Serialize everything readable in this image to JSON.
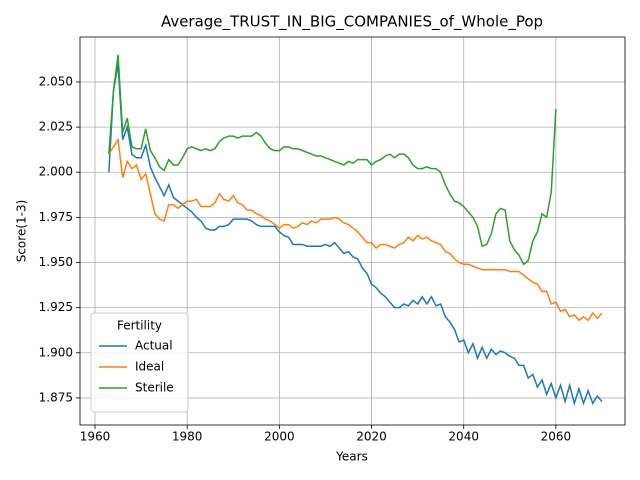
{
  "chart_data": {
    "type": "line",
    "title": "Average_TRUST_IN_BIG_COMPANIES_of_Whole_Pop",
    "x_label": "Years",
    "y_label": "Score(1-3)",
    "legend_title": "Fertility",
    "legend": "lower left",
    "grid": true,
    "xlim": [
      1956.74,
      2075.0
    ],
    "ylim": [
      1.86,
      2.0749
    ],
    "xticks": [
      1960,
      1980,
      2000,
      2020,
      2040,
      2060
    ],
    "yticks": [
      1.875,
      {
        "value": 1.9,
        "label": "1.900"
      },
      1.925,
      {
        "value": 1.95,
        "label": "1.950"
      },
      1.975,
      {
        "value": 2.0,
        "label": "2.000"
      },
      2.025,
      {
        "value": 2.05,
        "label": "2.050"
      }
    ],
    "x": [
      1963,
      1964,
      1965,
      1966,
      1967,
      1968,
      1969,
      1970,
      1971,
      1972,
      1973,
      1974,
      1975,
      1976,
      1977,
      1978,
      1979,
      1980,
      1981,
      1982,
      1983,
      1984,
      1985,
      1986,
      1987,
      1988,
      1989,
      1990,
      1991,
      1992,
      1993,
      1994,
      1995,
      1996,
      1997,
      1998,
      1999,
      2000,
      2001,
      2002,
      2003,
      2004,
      2005,
      2006,
      2007,
      2008,
      2009,
      2010,
      2011,
      2012,
      2013,
      2014,
      2015,
      2016,
      2017,
      2018,
      2019,
      2020,
      2021,
      2022,
      2023,
      2024,
      2025,
      2026,
      2027,
      2028,
      2029,
      2030,
      2031,
      2032,
      2033,
      2034,
      2035,
      2036,
      2037,
      2038,
      2039,
      2040,
      2041,
      2042,
      2043,
      2044,
      2045,
      2046,
      2047,
      2048,
      2049,
      2050,
      2051,
      2052,
      2053,
      2054,
      2055,
      2056,
      2057,
      2058,
      2059,
      2060,
      2061,
      2062,
      2063,
      2064,
      2065,
      2066,
      2067,
      2068,
      2069,
      2070
    ],
    "series": [
      {
        "name": "Actual",
        "color": "#1f77b4",
        "values": [
          2.0,
          2.045,
          2.06,
          2.018,
          2.025,
          2.01,
          2.008,
          2.008,
          2.015,
          2.003,
          1.997,
          1.992,
          1.987,
          1.993,
          1.986,
          1.984,
          1.982,
          1.98,
          1.978,
          1.975,
          1.973,
          1.969,
          1.968,
          1.968,
          1.97,
          1.97,
          1.971,
          1.974,
          1.974,
          1.974,
          1.974,
          1.973,
          1.971,
          1.97,
          1.97,
          1.97,
          1.97,
          1.967,
          1.965,
          1.964,
          1.96,
          1.96,
          1.96,
          1.959,
          1.959,
          1.959,
          1.959,
          1.96,
          1.959,
          1.961,
          1.958,
          1.955,
          1.956,
          1.953,
          1.952,
          1.947,
          1.944,
          1.938,
          1.936,
          1.933,
          1.931,
          1.928,
          1.925,
          1.925,
          1.927,
          1.926,
          1.929,
          1.927,
          1.931,
          1.927,
          1.931,
          1.926,
          1.927,
          1.92,
          1.917,
          1.913,
          1.906,
          1.907,
          1.9,
          1.905,
          1.897,
          1.903,
          1.897,
          1.902,
          1.899,
          1.901,
          1.9,
          1.898,
          1.897,
          1.893,
          1.893,
          1.886,
          1.888,
          1.881,
          1.885,
          1.877,
          1.883,
          1.875,
          1.882,
          1.873,
          1.882,
          1.872,
          1.88,
          1.872,
          1.879,
          1.872,
          1.876,
          1.873
        ]
      },
      {
        "name": "Ideal",
        "color": "#ff7f0e",
        "values": [
          2.01,
          2.014,
          2.018,
          1.997,
          2.006,
          2.002,
          2.004,
          1.996,
          1.999,
          1.988,
          1.977,
          1.974,
          1.973,
          1.982,
          1.982,
          1.98,
          1.982,
          1.984,
          1.984,
          1.985,
          1.981,
          1.981,
          1.981,
          1.983,
          1.988,
          1.985,
          1.984,
          1.987,
          1.983,
          1.982,
          1.979,
          1.979,
          1.977,
          1.976,
          1.974,
          1.973,
          1.971,
          1.969,
          1.971,
          1.971,
          1.969,
          1.97,
          1.972,
          1.971,
          1.973,
          1.972,
          1.974,
          1.974,
          1.974,
          1.975,
          1.974,
          1.972,
          1.971,
          1.969,
          1.967,
          1.964,
          1.961,
          1.961,
          1.958,
          1.96,
          1.96,
          1.959,
          1.958,
          1.96,
          1.961,
          1.964,
          1.962,
          1.965,
          1.963,
          1.964,
          1.962,
          1.961,
          1.96,
          1.956,
          1.955,
          1.952,
          1.95,
          1.949,
          1.949,
          1.948,
          1.947,
          1.946,
          1.946,
          1.946,
          1.946,
          1.946,
          1.946,
          1.945,
          1.945,
          1.945,
          1.943,
          1.941,
          1.939,
          1.938,
          1.934,
          1.934,
          1.927,
          1.928,
          1.923,
          1.924,
          1.92,
          1.921,
          1.918,
          1.92,
          1.918,
          1.922,
          1.919,
          1.922
        ]
      },
      {
        "name": "Sterile",
        "color": "#2ca02c",
        "values": [
          2.01,
          2.045,
          2.065,
          2.022,
          2.03,
          2.014,
          2.013,
          2.013,
          2.024,
          2.012,
          2.008,
          2.003,
          2.001,
          2.007,
          2.004,
          2.004,
          2.008,
          2.013,
          2.014,
          2.013,
          2.012,
          2.013,
          2.012,
          2.013,
          2.017,
          2.019,
          2.02,
          2.02,
          2.019,
          2.02,
          2.02,
          2.02,
          2.022,
          2.02,
          2.016,
          2.013,
          2.012,
          2.012,
          2.014,
          2.014,
          2.013,
          2.013,
          2.012,
          2.011,
          2.01,
          2.009,
          2.009,
          2.008,
          2.007,
          2.006,
          2.005,
          2.004,
          2.006,
          2.005,
          2.007,
          2.007,
          2.007,
          2.004,
          2.006,
          2.007,
          2.009,
          2.01,
          2.008,
          2.01,
          2.01,
          2.008,
          2.004,
          2.002,
          2.002,
          2.003,
          2.002,
          2.002,
          2.0,
          1.993,
          1.988,
          1.984,
          1.983,
          1.981,
          1.978,
          1.975,
          1.97,
          1.959,
          1.96,
          1.966,
          1.977,
          1.98,
          1.979,
          1.962,
          1.957,
          1.954,
          1.949,
          1.951,
          1.962,
          1.967,
          1.977,
          1.975,
          1.989,
          2.035,
          null,
          null,
          null,
          null,
          null,
          null,
          null,
          null,
          null,
          null
        ]
      }
    ]
  }
}
